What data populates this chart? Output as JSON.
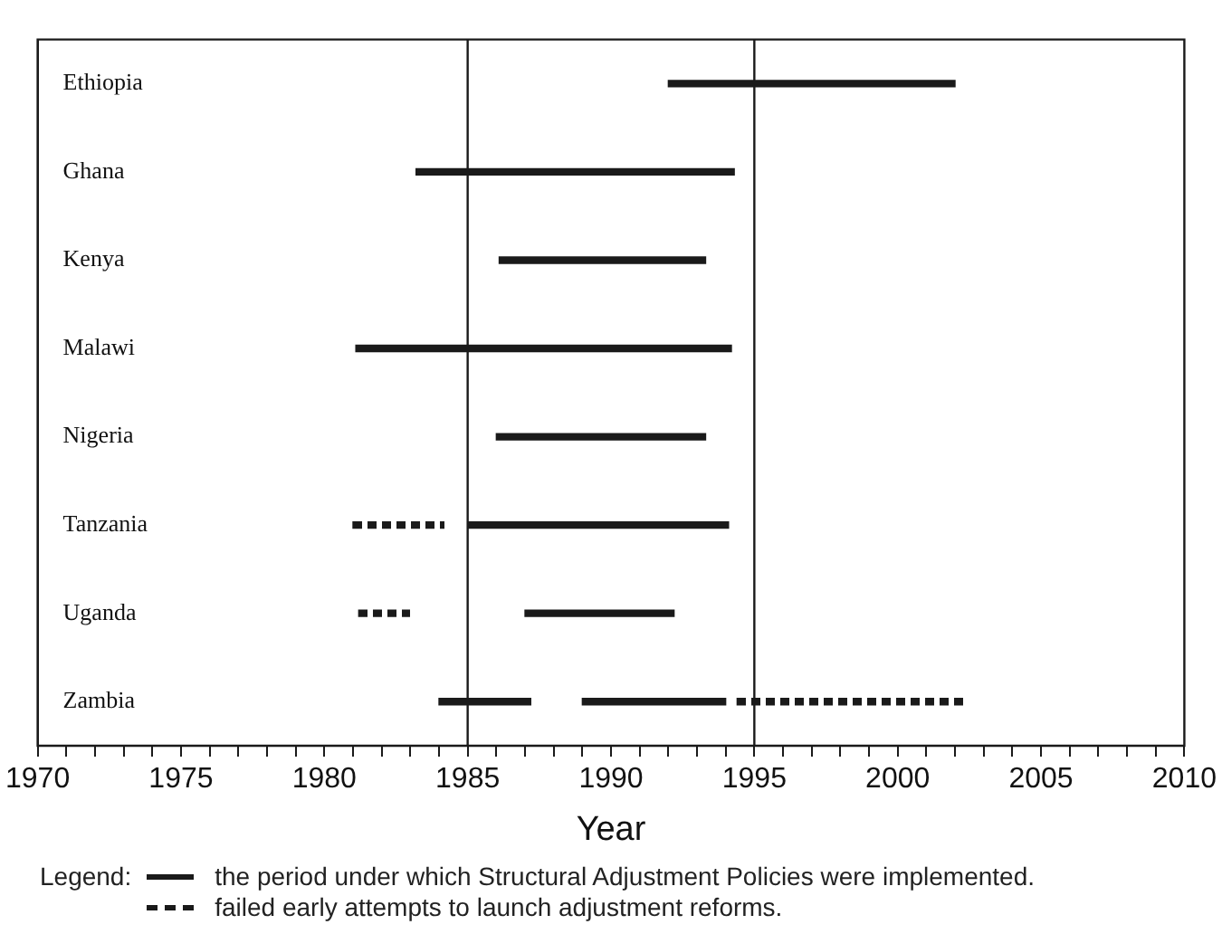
{
  "chart_data": {
    "type": "bar",
    "orientation": "horizontal",
    "categories": [
      "Ethiopia",
      "Ghana",
      "Kenya",
      "Malawi",
      "Nigeria",
      "Tanzania",
      "Uganda",
      "Zambia"
    ],
    "series": [
      {
        "name": "the period under which Structural Adjustment Policies were implemented.",
        "color": "#1a1a1a",
        "line_style": "solid",
        "base": [
          1992,
          1983.2,
          1986.1,
          1981.1,
          1986,
          1985,
          1987,
          1984
        ],
        "values": [
          10,
          11.1,
          7.2,
          13.1,
          7.3,
          9.1,
          5.2,
          3.2
        ]
      },
      {
        "color": "#1a1a1a",
        "line_style": "solid",
        "base": [
          null,
          null,
          null,
          null,
          null,
          null,
          null,
          1989
        ],
        "values": [
          null,
          null,
          null,
          null,
          null,
          null,
          null,
          5
        ]
      },
      {
        "name": "failed early attempts to launch adjustment reforms.",
        "color": "#1a1a1a",
        "line_style": "dashed",
        "base": [
          null,
          null,
          null,
          null,
          null,
          1981,
          1981.2,
          1994.4
        ],
        "values": [
          null,
          null,
          null,
          null,
          null,
          3.2,
          1.8,
          8
        ]
      }
    ],
    "xlabel": "Year",
    "legend_title": "Legend:",
    "legend": "bottom",
    "grid": false,
    "xlim": [
      1970,
      2010
    ],
    "xticks": [
      1970,
      {
        "value": 1971,
        "label": null
      },
      {
        "value": 1972,
        "label": null
      },
      {
        "value": 1973,
        "label": null
      },
      {
        "value": 1974,
        "label": null
      },
      1975,
      {
        "value": 1976,
        "label": null
      },
      {
        "value": 1977,
        "label": null
      },
      {
        "value": 1978,
        "label": null
      },
      {
        "value": 1979,
        "label": null
      },
      1980,
      {
        "value": 1981,
        "label": null
      },
      {
        "value": 1982,
        "label": null
      },
      {
        "value": 1983,
        "label": null
      },
      {
        "value": 1984,
        "label": null
      },
      1985,
      {
        "value": 1986,
        "label": null
      },
      {
        "value": 1987,
        "label": null
      },
      {
        "value": 1988,
        "label": null
      },
      {
        "value": 1989,
        "label": null
      },
      1990,
      {
        "value": 1991,
        "label": null
      },
      {
        "value": 1992,
        "label": null
      },
      {
        "value": 1993,
        "label": null
      },
      {
        "value": 1994,
        "label": null
      },
      1995,
      {
        "value": 1996,
        "label": null
      },
      {
        "value": 1997,
        "label": null
      },
      {
        "value": 1998,
        "label": null
      },
      {
        "value": 1999,
        "label": null
      },
      2000,
      {
        "value": 2001,
        "label": null
      },
      {
        "value": 2002,
        "label": null
      },
      {
        "value": 2003,
        "label": null
      },
      {
        "value": 2004,
        "label": null
      },
      2005,
      {
        "value": 2006,
        "label": null
      },
      {
        "value": 2007,
        "label": null
      },
      {
        "value": 2008,
        "label": null
      },
      {
        "value": 2009,
        "label": null
      },
      2010
    ],
    "ref_lines": [
      {
        "axis": "x",
        "value": 1985,
        "color": "#1a1a1a"
      },
      {
        "axis": "x",
        "value": 1995,
        "color": "#1a1a1a"
      }
    ]
  }
}
